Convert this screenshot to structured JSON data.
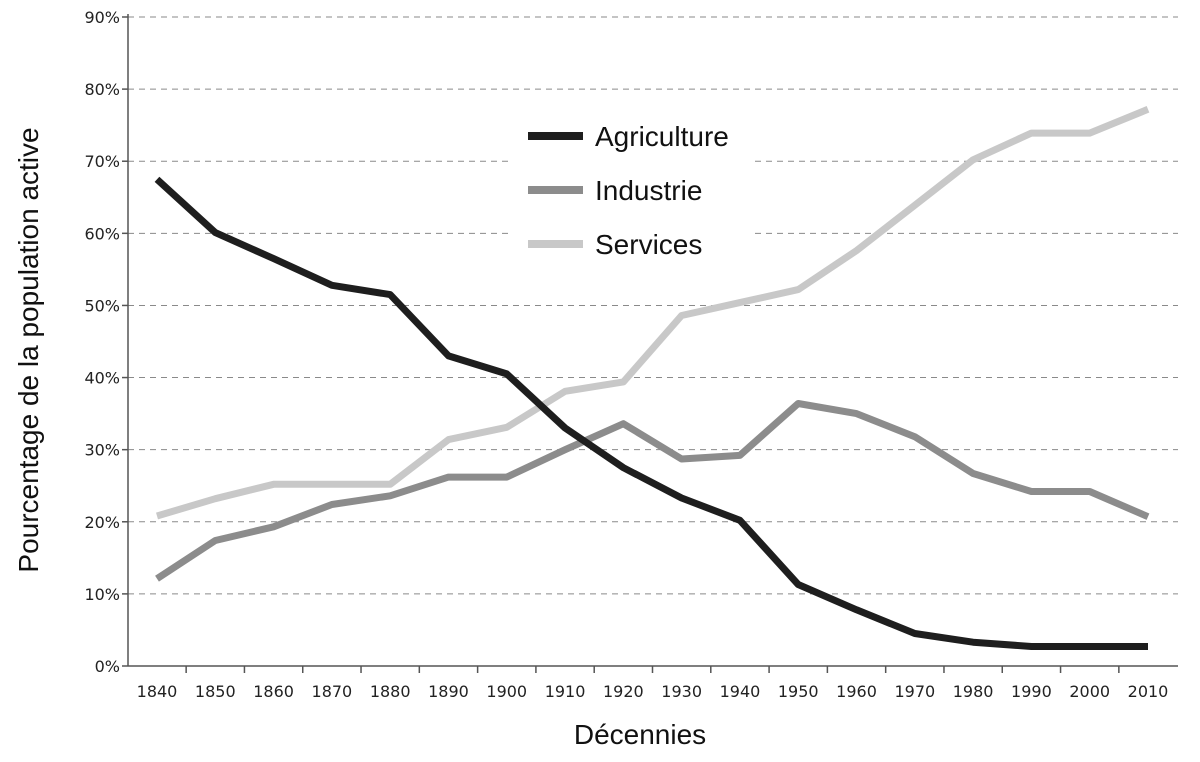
{
  "chart_data": {
    "type": "line",
    "xlabel": "Décennies",
    "ylabel": "Pourcentage de la population active",
    "x": [
      1840,
      1850,
      1860,
      1870,
      1880,
      1890,
      1900,
      1910,
      1920,
      1930,
      1940,
      1950,
      1960,
      1970,
      1980,
      1990,
      2000,
      2010
    ],
    "x_tick_labels": [
      "1840",
      "1850",
      "1860",
      "1870",
      "1880",
      "1890",
      "1900",
      "1910",
      "1920",
      "1930",
      "1940",
      "1950",
      "1960",
      "1970",
      "1980",
      "1990",
      "2000",
      "2010"
    ],
    "ylim": [
      0,
      90
    ],
    "y_ticks": [
      0,
      10,
      20,
      30,
      40,
      50,
      60,
      70,
      80,
      90
    ],
    "y_tick_labels": [
      "0%",
      "10%",
      "20%",
      "30%",
      "40%",
      "50%",
      "60%",
      "70%",
      "80%",
      "90%"
    ],
    "grid": true,
    "legend_position": "top-center",
    "series": [
      {
        "name": "Agriculture",
        "color": "#1e1e1e",
        "values": [
          67.5,
          60.1,
          56.5,
          52.8,
          51.5,
          43.0,
          40.5,
          33.0,
          27.5,
          23.3,
          20.2,
          11.3,
          7.8,
          4.5,
          3.3,
          2.7,
          2.7,
          2.7
        ]
      },
      {
        "name": "Industrie",
        "color": "#8c8c8c",
        "values": [
          12.1,
          17.4,
          19.3,
          22.4,
          23.6,
          26.2,
          26.2,
          30.0,
          33.6,
          28.7,
          29.2,
          36.4,
          35.0,
          31.8,
          26.7,
          24.2,
          24.2,
          20.7
        ]
      },
      {
        "name": "Services",
        "color": "#c8c8c8",
        "values": [
          20.8,
          23.2,
          25.2,
          25.2,
          25.2,
          31.4,
          33.1,
          38.1,
          39.4,
          48.6,
          50.4,
          52.2,
          57.6,
          63.9,
          70.2,
          73.9,
          73.9,
          77.2
        ]
      }
    ]
  }
}
